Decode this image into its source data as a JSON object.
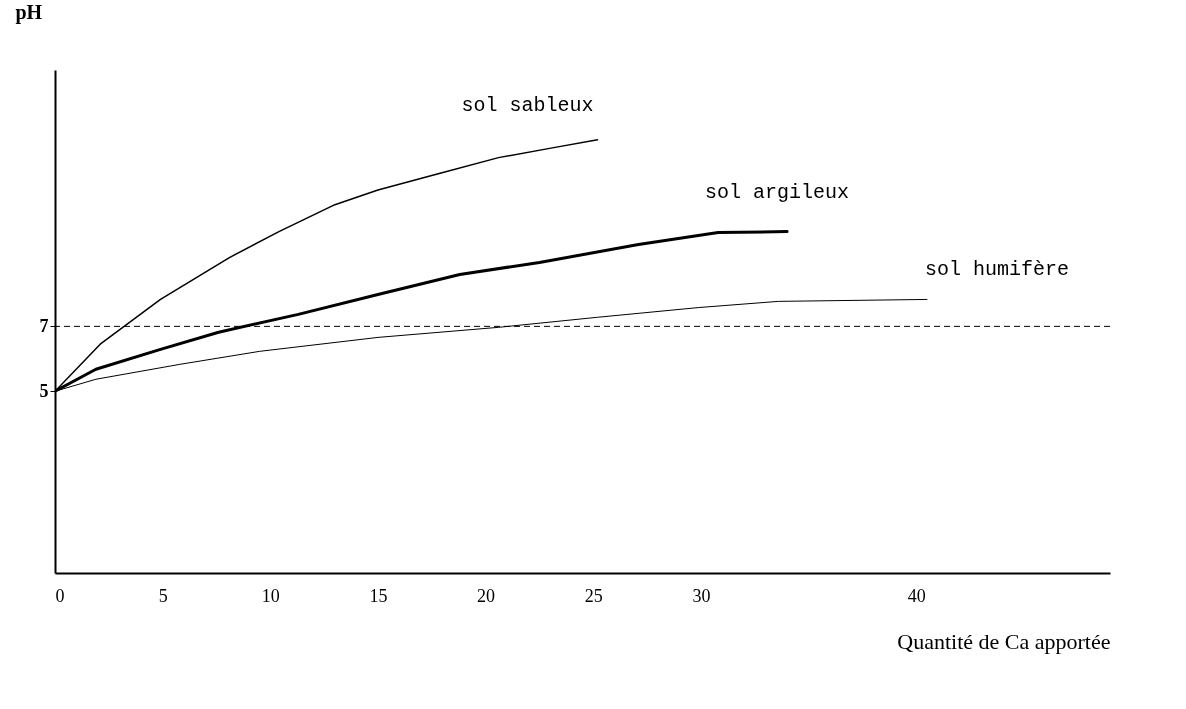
{
  "chart_data": {
    "type": "line",
    "xlabel": "Quantité de Ca apportée",
    "ylabel": "pH",
    "xlim": [
      0,
      49
    ],
    "ylim": [
      -0.6,
      14.9
    ],
    "xticks": [
      0,
      5,
      10,
      15,
      20,
      25,
      30,
      40
    ],
    "yticks": [
      5,
      7
    ],
    "grid": false,
    "ref_lines": [
      {
        "axis": "y",
        "value": 7,
        "line_style": "dashed",
        "color": "#000000"
      }
    ],
    "series": [
      {
        "name": "sol sableux",
        "color": "#000000",
        "x": [
          0,
          2.1,
          4.9,
          8.1,
          10.4,
          13,
          15,
          17.8,
          20.6,
          23.1,
          25.2
        ],
        "values": [
          5,
          6.45,
          7.83,
          9.12,
          9.92,
          10.75,
          11.2,
          11.7,
          12.2,
          12.5,
          12.75
        ]
      },
      {
        "name": "sol argileux",
        "color": "#000000",
        "x": [
          0,
          1.9,
          4.9,
          7.6,
          11.3,
          15,
          18.8,
          22.5,
          27.1,
          30.8,
          34
        ],
        "values": [
          5,
          5.68,
          6.29,
          6.82,
          7.37,
          7.98,
          8.6,
          8.97,
          9.52,
          9.89,
          9.92
        ]
      },
      {
        "name": "sol humifère",
        "color": "#000000",
        "x": [
          0,
          1.9,
          5.8,
          9.5,
          15,
          20.6,
          25.2,
          29.9,
          33.6,
          40.5
        ],
        "values": [
          5,
          5.37,
          5.83,
          6.23,
          6.66,
          6.97,
          7.28,
          7.58,
          7.77,
          7.83
        ]
      }
    ]
  }
}
